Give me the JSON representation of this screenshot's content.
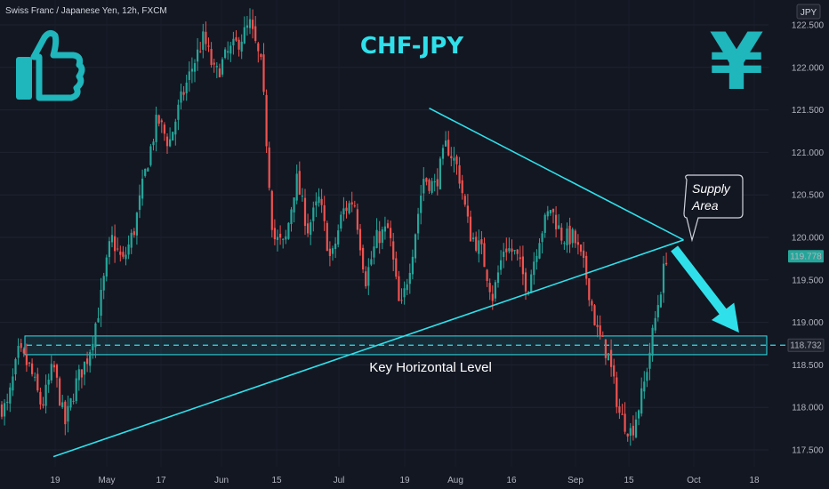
{
  "header": {
    "symbol": "Swiss Franc / Japanese Yen, 12h, FXCM",
    "currency_badge": "JPY"
  },
  "annotations": {
    "title": "CHF-JPY",
    "key_level_label": "Key Horizontal Level",
    "supply_line1": "Supply",
    "supply_line2": "Area",
    "yen_symbol": "¥",
    "thumb_icon": "thumbs-up-icon"
  },
  "colors": {
    "background": "#131722",
    "up": "#26a69a",
    "down": "#ef5350",
    "accent": "#2fe0ea",
    "price_label": "#26a69a",
    "level_label": "#1e222d"
  },
  "chart_data": {
    "type": "candlestick",
    "symbol": "Swiss Franc / Japanese Yen",
    "interval": "12h",
    "source": "FXCM",
    "x_tick_labels": [
      "19",
      "May",
      "17",
      "Jun",
      "15",
      "Jul",
      "19",
      "Aug",
      "16",
      "Sep",
      "15",
      "Oct",
      "18"
    ],
    "y_ticks": [
      "122.500",
      "122.000",
      "121.500",
      "121.000",
      "120.500",
      "120.000",
      "119.500",
      "119.000",
      "118.500",
      "118.000",
      "117.500"
    ],
    "ylim": [
      117.4,
      122.7
    ],
    "last_price": "119.778",
    "key_level": "118.732",
    "key_zone": [
      118.62,
      118.84
    ],
    "price_path": [
      [
        0,
        118.0
      ],
      [
        1,
        118.65
      ],
      [
        2,
        118.45
      ],
      [
        3,
        118.0
      ],
      [
        4,
        118.5
      ],
      [
        5,
        117.8
      ],
      [
        6,
        118.3
      ],
      [
        7,
        118.6
      ],
      [
        8,
        119.2
      ],
      [
        9,
        120.0
      ],
      [
        10,
        119.7
      ],
      [
        11,
        120.1
      ],
      [
        12,
        120.8
      ],
      [
        13,
        121.4
      ],
      [
        14,
        121.1
      ],
      [
        15,
        121.6
      ],
      [
        16,
        122.0
      ],
      [
        17,
        122.35
      ],
      [
        18,
        121.9
      ],
      [
        19,
        122.15
      ],
      [
        20,
        122.3
      ],
      [
        21,
        122.5
      ],
      [
        22,
        122.0
      ],
      [
        23,
        120.0
      ],
      [
        24,
        119.9
      ],
      [
        25,
        120.7
      ],
      [
        26,
        120.1
      ],
      [
        27,
        120.45
      ],
      [
        28,
        119.7
      ],
      [
        29,
        120.3
      ],
      [
        30,
        120.45
      ],
      [
        31,
        119.5
      ],
      [
        32,
        120.0
      ],
      [
        33,
        120.1
      ],
      [
        34,
        119.1
      ],
      [
        35,
        119.8
      ],
      [
        36,
        120.7
      ],
      [
        37,
        120.6
      ],
      [
        38,
        121.1
      ],
      [
        39,
        120.8
      ],
      [
        40,
        120.05
      ],
      [
        41,
        119.85
      ],
      [
        42,
        119.3
      ],
      [
        43,
        119.9
      ],
      [
        44,
        119.8
      ],
      [
        45,
        119.4
      ],
      [
        46,
        120.0
      ],
      [
        47,
        120.35
      ],
      [
        48,
        120.0
      ],
      [
        49,
        120.0
      ],
      [
        50,
        119.6
      ],
      [
        51,
        118.9
      ],
      [
        52,
        118.6
      ],
      [
        53,
        117.9
      ],
      [
        54,
        117.7
      ],
      [
        55,
        118.2
      ],
      [
        56,
        119.0
      ],
      [
        57,
        119.778
      ]
    ],
    "trendlines": [
      {
        "name": "descending-resistance",
        "from": [
          36.5,
          121.52
        ],
        "to": [
          58.5,
          119.97
        ]
      },
      {
        "name": "ascending-support",
        "from": [
          4,
          117.42
        ],
        "to": [
          58.5,
          119.97
        ]
      }
    ],
    "projection_arrow": {
      "from": [
        57.7,
        119.87
      ],
      "to": [
        63.3,
        118.88
      ]
    }
  }
}
